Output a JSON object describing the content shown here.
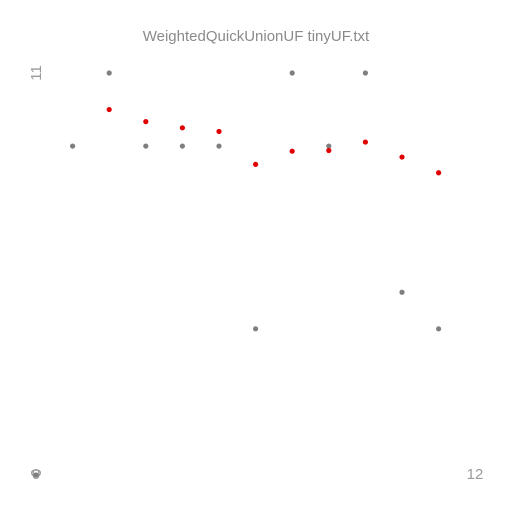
{
  "chart_data": {
    "type": "scatter",
    "title": "WeightedQuickUnionUF tinyUF.txt",
    "x_min_label": "0",
    "x_max_label": "12",
    "y_min_label": "0",
    "y_max_label": "11",
    "xlim": [
      0,
      12
    ],
    "ylim": [
      0,
      11
    ],
    "grid": false,
    "legend": "none",
    "colors": {
      "gray": "#7f7f7f",
      "red": "#e00000",
      "text": "#8a8a8a"
    },
    "series": [
      {
        "color": "gray",
        "points": [
          {
            "x": 0,
            "y": 0
          },
          {
            "x": 1,
            "y": 9
          },
          {
            "x": 2,
            "y": 11
          },
          {
            "x": 3,
            "y": 9
          },
          {
            "x": 4,
            "y": 9
          },
          {
            "x": 5,
            "y": 9
          },
          {
            "x": 6,
            "y": 4
          },
          {
            "x": 7,
            "y": 11
          },
          {
            "x": 8,
            "y": 9
          },
          {
            "x": 9,
            "y": 11
          },
          {
            "x": 10,
            "y": 5
          },
          {
            "x": 11,
            "y": 4
          }
        ]
      },
      {
        "color": "red",
        "points": [
          {
            "x": 2,
            "y": 10
          },
          {
            "x": 3,
            "y": 9.67
          },
          {
            "x": 4,
            "y": 9.5
          },
          {
            "x": 5,
            "y": 9.4
          },
          {
            "x": 6,
            "y": 8.5
          },
          {
            "x": 7,
            "y": 8.86
          },
          {
            "x": 8,
            "y": 8.88
          },
          {
            "x": 9,
            "y": 9.11
          },
          {
            "x": 10,
            "y": 8.7
          },
          {
            "x": 11,
            "y": 8.27
          }
        ]
      }
    ]
  }
}
